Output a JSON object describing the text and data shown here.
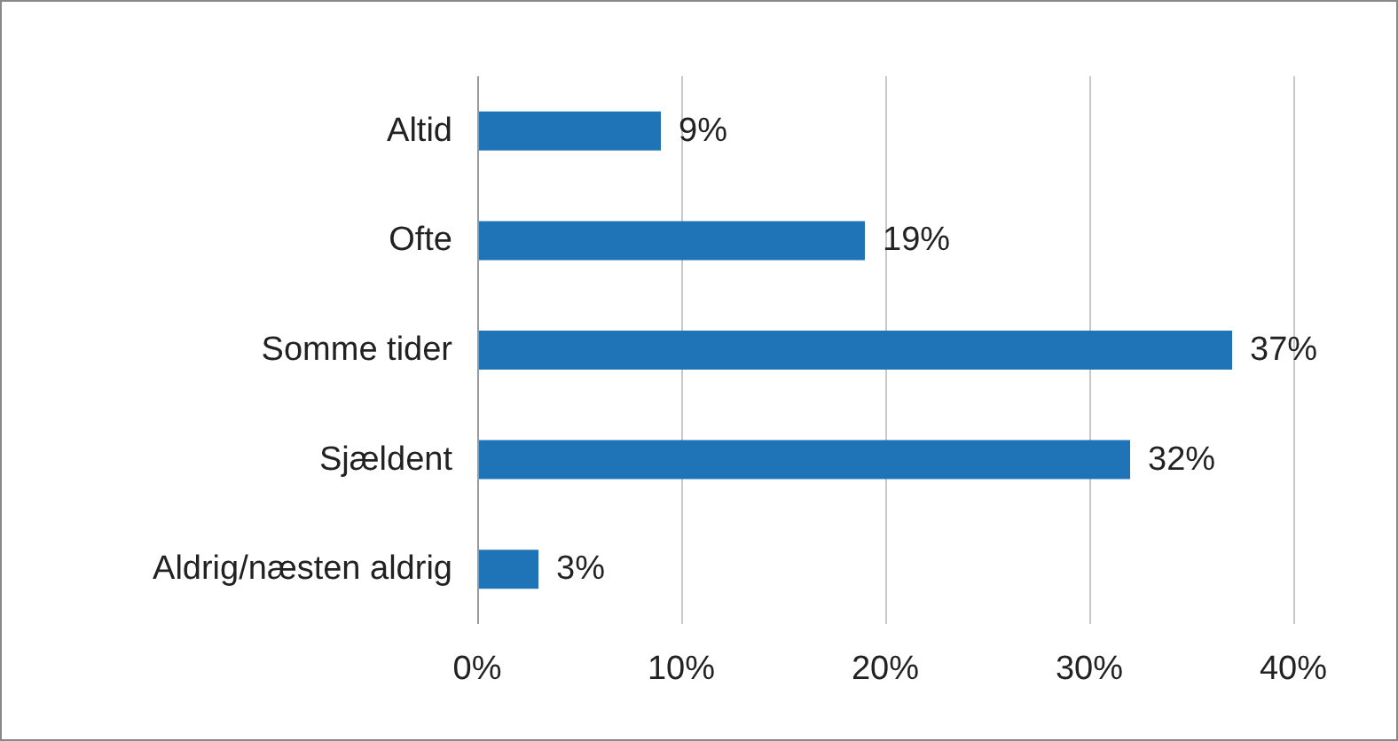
{
  "chart_data": {
    "type": "bar",
    "orientation": "horizontal",
    "categories": [
      "Altid",
      "Ofte",
      "Somme tider",
      "Sjældent",
      "Aldrig/næsten aldrig"
    ],
    "values": [
      9,
      19,
      37,
      32,
      3
    ],
    "color": "#1f73b7",
    "value_labels": [
      "9%",
      "19%",
      "37%",
      "32%",
      "3%"
    ],
    "xlim": [
      0,
      40
    ],
    "xticks": [
      {
        "value": 0,
        "label": "0%"
      },
      {
        "value": 10,
        "label": "10%"
      },
      {
        "value": 20,
        "label": "20%"
      },
      {
        "value": 30,
        "label": "30%"
      },
      {
        "value": 40,
        "label": "40%"
      }
    ],
    "grid": "x"
  }
}
